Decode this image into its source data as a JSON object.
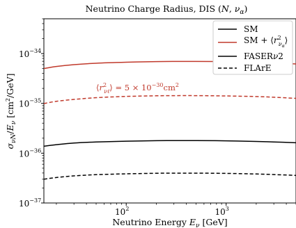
{
  "chart_data": {
    "type": "line",
    "title": "Neutrino Charge Radius,  DIS (N, ν_α)",
    "xlabel": "Neutrino Energy E_ν [GeV]",
    "ylabel": "σ_νN/E_ν [cm²/GeV]",
    "xscale": "log",
    "yscale": "log",
    "xlim": [
      15,
      5000
    ],
    "ylim": [
      1e-37,
      5e-34
    ],
    "x_ticks": [
      {
        "value": 100,
        "base": "10",
        "exp": "2"
      },
      {
        "value": 1000,
        "base": "10",
        "exp": "3"
      }
    ],
    "y_ticks": [
      {
        "value": 1e-37,
        "base": "10",
        "exp": "−37"
      },
      {
        "value": 1e-36,
        "base": "10",
        "exp": "−36"
      },
      {
        "value": 1e-35,
        "base": "10",
        "exp": "−35"
      },
      {
        "value": 1e-34,
        "base": "10",
        "exp": "−34"
      }
    ],
    "grid": false,
    "legend_position": "top-right",
    "legend": [
      {
        "label": "SM",
        "color": "#000000",
        "dash": "solid"
      },
      {
        "label": "SM + ⟨r²_να⟩",
        "color": "#c0392b",
        "dash": "solid"
      },
      {
        "label": "FASERν2",
        "color": "#000000",
        "dash": "solid"
      },
      {
        "label": "FLArE",
        "color": "#000000",
        "dash": "dashed"
      }
    ],
    "annotation": {
      "text": "⟨r²_νℓ⟩ = 5 × 10⁻³⁰cm²",
      "color": "#c0392b"
    },
    "series": [
      {
        "color": "#c0392b",
        "dash": "solid",
        "x": [
          15,
          20,
          30,
          50,
          100,
          200,
          300,
          500,
          1000,
          2000,
          3000,
          5000
        ],
        "y": [
          5e-35,
          5.5e-35,
          6e-35,
          6.4e-35,
          6.7e-35,
          6.9e-35,
          6.95e-35,
          6.95e-35,
          6.9e-35,
          6.7e-35,
          6.5e-35,
          6.2e-35
        ]
      },
      {
        "color": "#c0392b",
        "dash": "dashed",
        "x": [
          15,
          20,
          30,
          50,
          100,
          200,
          300,
          500,
          1000,
          2000,
          3000,
          5000
        ],
        "y": [
          9.9e-36,
          1.1e-35,
          1.2e-35,
          1.3e-35,
          1.38e-35,
          1.42e-35,
          1.43e-35,
          1.43e-35,
          1.41e-35,
          1.37e-35,
          1.33e-35,
          1.26e-35
        ]
      },
      {
        "color": "#000000",
        "dash": "solid",
        "x": [
          15,
          20,
          30,
          50,
          100,
          200,
          300,
          500,
          1000,
          2000,
          3000,
          5000
        ],
        "y": [
          1.38e-36,
          1.48e-36,
          1.6e-36,
          1.68e-36,
          1.74e-36,
          1.78e-36,
          1.79e-36,
          1.79e-36,
          1.77e-36,
          1.72e-36,
          1.68e-36,
          1.62e-36
        ]
      },
      {
        "color": "#000000",
        "dash": "dashed",
        "x": [
          15,
          20,
          30,
          50,
          100,
          200,
          300,
          500,
          1000,
          2000,
          3000,
          5000
        ],
        "y": [
          3e-37,
          3.25e-37,
          3.5e-37,
          3.7e-37,
          3.85e-37,
          3.95e-37,
          3.97e-37,
          3.97e-37,
          3.93e-37,
          3.82e-37,
          3.72e-37,
          3.58e-37
        ]
      }
    ]
  }
}
